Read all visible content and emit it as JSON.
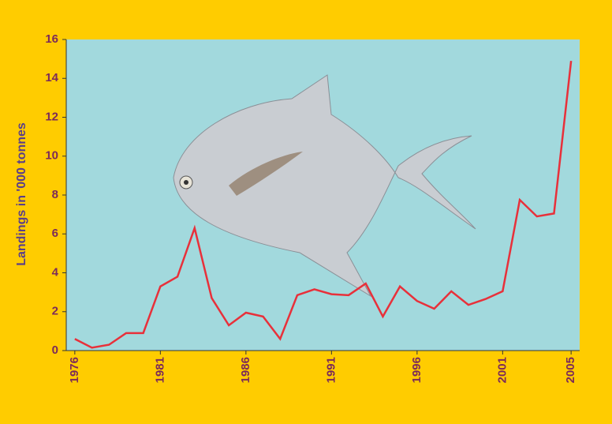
{
  "chart_data": {
    "type": "line",
    "y_label": "Landings in '000 tonnes",
    "x": [
      1976,
      1977,
      1978,
      1979,
      1980,
      1981,
      1982,
      1983,
      1984,
      1985,
      1986,
      1987,
      1988,
      1989,
      1990,
      1991,
      1992,
      1993,
      1994,
      1995,
      1996,
      1997,
      1998,
      1999,
      2000,
      2001,
      2002,
      2003,
      2004,
      2005
    ],
    "series": [
      {
        "color": "#e8303a",
        "values": [
          0.6,
          0.15,
          0.3,
          0.9,
          0.9,
          3.3,
          3.8,
          6.3,
          2.7,
          1.3,
          1.95,
          1.75,
          0.6,
          2.85,
          3.15,
          2.9,
          2.85,
          3.45,
          1.75,
          3.3,
          2.55,
          2.15,
          3.05,
          2.35,
          2.65,
          3.05,
          7.75,
          6.9,
          7.05,
          14.9
        ]
      }
    ],
    "xlim": [
      1975.5,
      2005.5
    ],
    "xticks": [
      1976,
      1981,
      1986,
      1991,
      1996,
      2001,
      2005
    ],
    "ylim": [
      0,
      16
    ],
    "yticks": [
      0,
      2,
      4,
      6,
      8,
      10,
      12,
      14,
      16
    ]
  }
}
